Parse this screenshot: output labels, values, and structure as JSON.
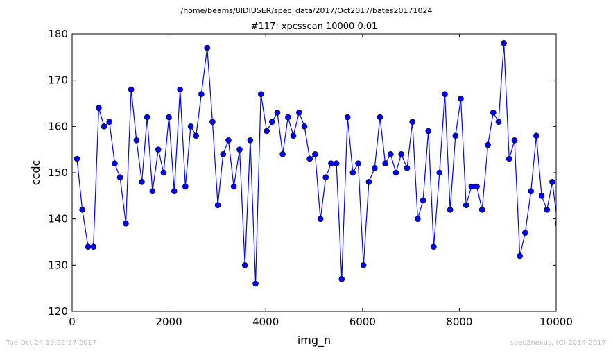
{
  "suptitle": "/home/beams/8IDIUSER/spec_data/2017/Oct2017/bates20171024",
  "footer": {
    "timestamp": "Tue Oct 24 19:22:37 2017",
    "credit": "spec2nexus, (C) 2014-2017"
  },
  "colors": {
    "series": "#0000ff",
    "axes": "#000000"
  },
  "chart_data": {
    "type": "line",
    "title": "#117: xpcsscan 10000 0.01",
    "xlabel": "img_n",
    "ylabel": "ccdc",
    "xlim": [
      0,
      10000
    ],
    "ylim": [
      120,
      180
    ],
    "xticks": [
      0,
      2000,
      4000,
      6000,
      8000,
      10000
    ],
    "yticks": [
      120,
      130,
      140,
      150,
      160,
      170,
      180
    ],
    "grid": false,
    "marker": "circle",
    "x": [
      100,
      210,
      330,
      440,
      550,
      660,
      770,
      880,
      990,
      1110,
      1220,
      1330,
      1440,
      1550,
      1660,
      1780,
      1890,
      2000,
      2110,
      2230,
      2340,
      2450,
      2560,
      2670,
      2790,
      2900,
      3010,
      3120,
      3230,
      3340,
      3460,
      3570,
      3680,
      3790,
      3900,
      4020,
      4130,
      4240,
      4350,
      4460,
      4570,
      4690,
      4800,
      4910,
      5020,
      5130,
      5240,
      5350,
      5460,
      5570,
      5690,
      5800,
      5910,
      6020,
      6130,
      6250,
      6360,
      6470,
      6580,
      6690,
      6800,
      6920,
      7030,
      7140,
      7250,
      7360,
      7470,
      7590,
      7700,
      7810,
      7920,
      8030,
      8140,
      8250,
      8360,
      8470,
      8590,
      8700,
      8810,
      8920,
      9030,
      9140,
      9250,
      9360,
      9480,
      9590,
      9700,
      9810,
      9920,
      10030
    ],
    "y": [
      153,
      142,
      134,
      134,
      164,
      160,
      161,
      152,
      149,
      139,
      168,
      157,
      148,
      162,
      146,
      155,
      150,
      162,
      146,
      168,
      147,
      160,
      158,
      167,
      177,
      161,
      143,
      154,
      157,
      147,
      155,
      130,
      157,
      126,
      167,
      159,
      161,
      163,
      154,
      162,
      158,
      163,
      160,
      153,
      154,
      140,
      149,
      152,
      152,
      127,
      162,
      150,
      152,
      130,
      148,
      151,
      162,
      152,
      154,
      150,
      154,
      151,
      161,
      140,
      144,
      159,
      134,
      150,
      167,
      142,
      158,
      166,
      143,
      147,
      147,
      142,
      156,
      163,
      161,
      178,
      153,
      157,
      132,
      137,
      146,
      158,
      145,
      142,
      148,
      139
    ]
  }
}
